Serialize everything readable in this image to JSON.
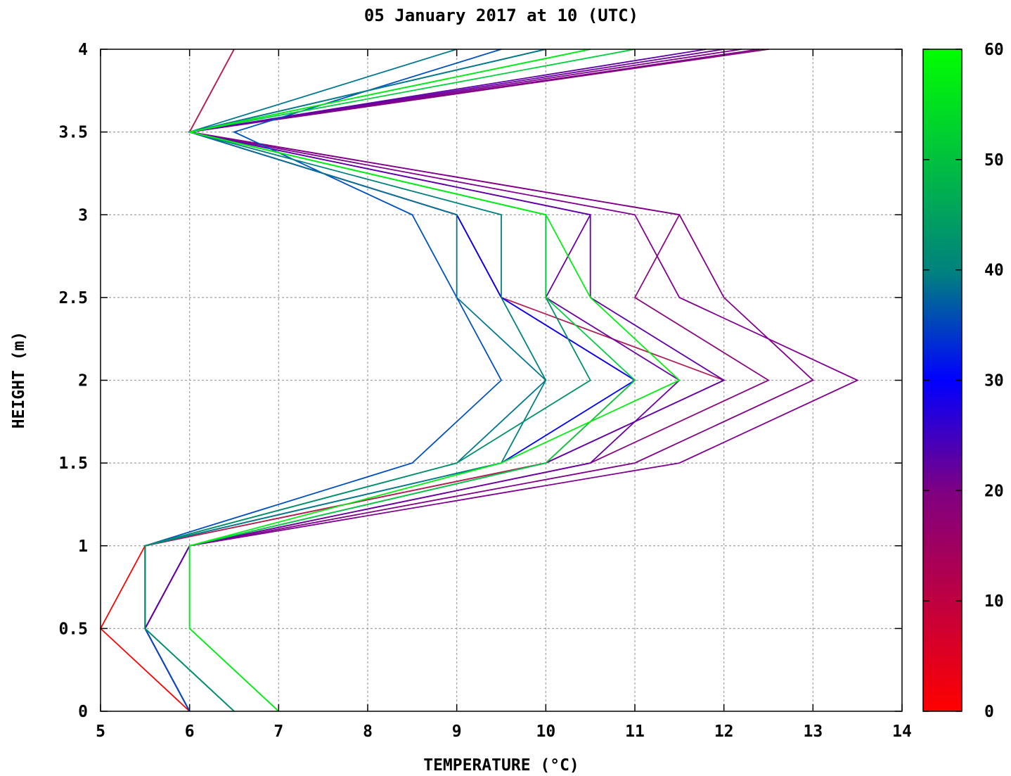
{
  "chart_data": {
    "type": "line",
    "title": "05 January 2017 at 10 (UTC)",
    "xlabel": "TEMPERATURE (°C)",
    "ylabel": "HEIGHT (m)",
    "xlim": [
      5,
      14
    ],
    "ylim": [
      0,
      4
    ],
    "x_ticks": [
      "5",
      "6",
      "7",
      "8",
      "9",
      "10",
      "11",
      "12",
      "13",
      "14"
    ],
    "y_ticks": [
      "0",
      "0.5",
      "1",
      "1.5",
      "2",
      "2.5",
      "3",
      "3.5",
      "4"
    ],
    "grid": true,
    "heights": [
      0,
      0.5,
      1,
      1.5,
      2,
      2.5,
      3,
      3.5,
      4
    ],
    "colorbar": {
      "range": [
        0,
        60
      ],
      "ticks": [
        "0",
        "10",
        "20",
        "30",
        "40",
        "50",
        "60"
      ],
      "colors": [
        "#ff0000",
        "#c00040",
        "#800080",
        "#4000c0",
        "#0000ff",
        "#008080",
        "#00ff00"
      ]
    },
    "series": [
      {
        "color_value": 0,
        "color": "#ff0000",
        "values": [
          6,
          5,
          5.5,
          10,
          11,
          9.5,
          9,
          6,
          6.5
        ]
      },
      {
        "color_value": 10,
        "color": "#b0205a",
        "values": [
          6,
          5.5,
          5.5,
          10,
          12,
          9.5,
          9,
          6,
          6.5
        ]
      },
      {
        "color_value": 15,
        "color": "#8a0a80",
        "values": [
          6,
          5.5,
          6,
          10.5,
          12.5,
          11,
          11.5,
          6,
          12.5
        ]
      },
      {
        "color_value": 17,
        "color": "#800088",
        "values": [
          6,
          5.5,
          6,
          11,
          13,
          12,
          11.5,
          6,
          12.4
        ]
      },
      {
        "color_value": 18,
        "color": "#800090",
        "values": [
          6,
          5.5,
          6,
          11.5,
          13.5,
          11.5,
          11,
          6,
          12.2
        ]
      },
      {
        "color_value": 20,
        "color": "#6a00a0",
        "values": [
          6,
          5.5,
          6,
          10.5,
          11.5,
          10,
          10.5,
          6,
          12
        ]
      },
      {
        "color_value": 22,
        "color": "#6000a8",
        "values": [
          6,
          5.5,
          6,
          10,
          12,
          10.5,
          10.5,
          6,
          11.8
        ]
      },
      {
        "color_value": 30,
        "color": "#0000ff",
        "values": [
          6,
          5.5,
          5.5,
          9.5,
          11,
          9.5,
          9,
          6,
          10
        ]
      },
      {
        "color_value": 38,
        "color": "#0050c0",
        "values": [
          6,
          5.5,
          5.5,
          8.5,
          9.5,
          9,
          8.5,
          6.5,
          9.5
        ]
      },
      {
        "color_value": 42,
        "color": "#007890",
        "values": [
          6.5,
          5.5,
          5.5,
          9,
          10,
          9,
          9,
          6,
          9
        ]
      },
      {
        "color_value": 45,
        "color": "#008080",
        "values": [
          6.5,
          5.5,
          5.5,
          9.5,
          10,
          9.5,
          9.5,
          6,
          10
        ]
      },
      {
        "color_value": 48,
        "color": "#00906a",
        "values": [
          6.5,
          5.5,
          5.5,
          9,
          10.5,
          10,
          10,
          6,
          10.5
        ]
      },
      {
        "color_value": 55,
        "color": "#00d040",
        "values": [
          7,
          6,
          6,
          10,
          11,
          10,
          10,
          6,
          11
        ]
      },
      {
        "color_value": 58,
        "color": "#00f010",
        "values": [
          7,
          6,
          6,
          9.5,
          11.5,
          10.5,
          10,
          6,
          10.5
        ]
      }
    ]
  }
}
